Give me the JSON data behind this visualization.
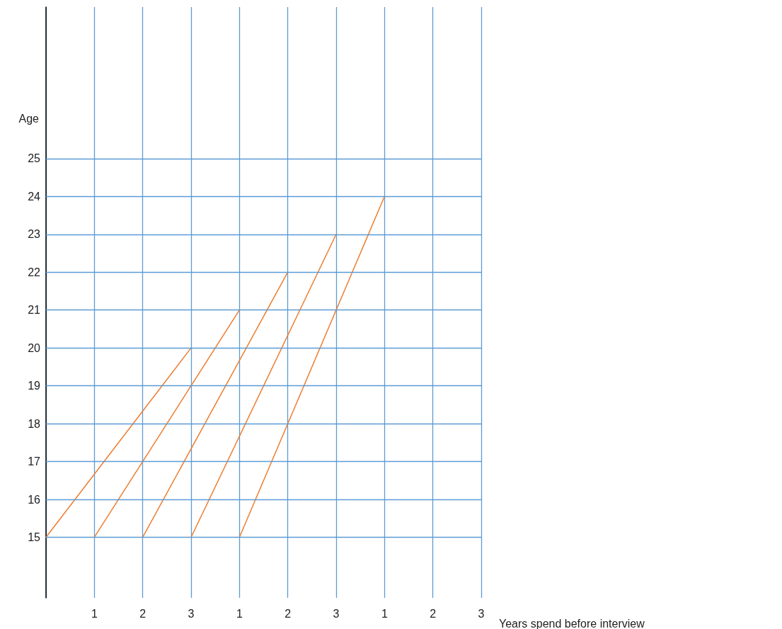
{
  "chart_data": {
    "type": "line",
    "xlabel": "Years spend before interview",
    "ylabel": "Age",
    "categories": [
      null,
      "1",
      "2",
      "3",
      "1",
      "2",
      "3",
      "1",
      "2",
      "3"
    ],
    "series": [
      {
        "color": "#ed7d31",
        "values": [
          15,
          null,
          null,
          20,
          null,
          null,
          null,
          null,
          null,
          null
        ]
      },
      {
        "color": "#ed7d31",
        "values": [
          null,
          15,
          null,
          null,
          21,
          null,
          null,
          null,
          null,
          null
        ]
      },
      {
        "color": "#ed7d31",
        "values": [
          null,
          null,
          15,
          null,
          null,
          22,
          null,
          null,
          null,
          null
        ]
      },
      {
        "color": "#ed7d31",
        "values": [
          null,
          null,
          null,
          15,
          null,
          null,
          23,
          null,
          null,
          null
        ]
      },
      {
        "color": "#ed7d31",
        "values": [
          null,
          null,
          null,
          null,
          15,
          null,
          null,
          24,
          null,
          null
        ]
      }
    ],
    "ylim": [
      13.4,
      29
    ],
    "yticks": [
      15,
      16,
      17,
      18,
      19,
      20,
      21,
      22,
      23,
      24,
      25
    ],
    "grid": true,
    "marker": "none",
    "line_style": "solid"
  }
}
